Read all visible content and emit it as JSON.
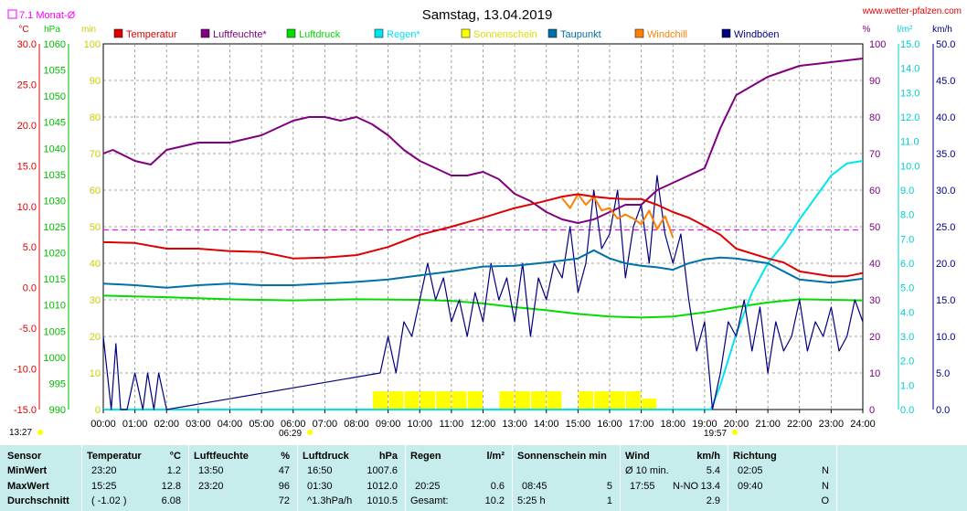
{
  "header": {
    "title": "Samstag, 13.04.2019",
    "site": "www.wetter-pfalzen.com",
    "monthly_avg_label": "7.1 Monat-Ø",
    "sunrise_left": "13:27",
    "sunrise": "06:29",
    "sunset": "19:57"
  },
  "units": {
    "temp": "°C",
    "press": "hPa",
    "sun": "min",
    "hum": "%",
    "rain": "l/m²",
    "wind": "km/h"
  },
  "colors": {
    "temperature": "#dd0000",
    "humidity": "#800080",
    "pressure": "#00dd00",
    "rain": "#00e5ee",
    "sunshine": "#ffff00",
    "dewpoint": "#0070a8",
    "windchill": "#ff8000",
    "gusts": "#000080",
    "monthly_avg": "#ff00ff",
    "summary_bg": "#c6ecec"
  },
  "legend": [
    {
      "label": "Temperatur",
      "color": "#dd0000"
    },
    {
      "label": "Luftfeuchte*",
      "color": "#800080"
    },
    {
      "label": "Luftdruck",
      "color": "#00dd00"
    },
    {
      "label": "Regen*",
      "color": "#00e5ee"
    },
    {
      "label": "Sonnenschein",
      "color": "#ffff00"
    },
    {
      "label": "Taupunkt",
      "color": "#0070a8"
    },
    {
      "label": "Windchill",
      "color": "#ff8000"
    },
    {
      "label": "Windböen",
      "color": "#000080"
    }
  ],
  "chart_data": {
    "type": "line",
    "title": "Samstag, 13.04.2019",
    "x_ticks": [
      "00:00",
      "01:00",
      "02:00",
      "03:00",
      "04:00",
      "05:00",
      "06:00",
      "07:00",
      "08:00",
      "09:00",
      "10:00",
      "11:00",
      "12:00",
      "13:00",
      "14:00",
      "15:00",
      "16:00",
      "17:00",
      "18:00",
      "19:00",
      "20:00",
      "21:00",
      "22:00",
      "23:00",
      "24:00"
    ],
    "axes": {
      "temp": {
        "label": "°C",
        "range": [
          -15,
          30
        ],
        "ticks": [
          "30.0",
          "25.0",
          "20.0",
          "15.0",
          "10.0",
          "5.0",
          "0.0",
          "-5.0",
          "-10.0",
          "-15.0"
        ]
      },
      "press": {
        "label": "hPa",
        "range": [
          990,
          1060
        ],
        "ticks": [
          "1060",
          "1055",
          "1050",
          "1045",
          "1040",
          "1035",
          "1030",
          "1025",
          "1020",
          "1015",
          "1010",
          "1005",
          "1000",
          "995",
          "990"
        ]
      },
      "sun": {
        "label": "min",
        "range": [
          0,
          100
        ],
        "ticks": [
          "100",
          "90",
          "80",
          "70",
          "60",
          "50",
          "40",
          "30",
          "20",
          "10",
          "0"
        ]
      },
      "hum": {
        "label": "%",
        "range": [
          0,
          100
        ],
        "ticks": [
          "100",
          "90",
          "80",
          "70",
          "60",
          "50",
          "40",
          "30",
          "20",
          "10",
          "0"
        ]
      },
      "rain": {
        "label": "l/m²",
        "range": [
          0,
          15
        ],
        "ticks": [
          "15.0",
          "14.0",
          "13.0",
          "12.0",
          "11.0",
          "10.0",
          "9.0",
          "8.0",
          "7.0",
          "6.0",
          "5.0",
          "4.0",
          "3.0",
          "2.0",
          "1.0",
          "0.0"
        ]
      },
      "wind": {
        "label": "km/h",
        "range": [
          0,
          50
        ],
        "ticks": [
          "50.0",
          "45.0",
          "40.0",
          "35.0",
          "30.0",
          "25.0",
          "20.0",
          "15.0",
          "10.0",
          "5.0",
          "0.0"
        ]
      }
    },
    "monthly_avg_temp": 7.1,
    "series": [
      {
        "name": "Temperatur",
        "axis": "temp",
        "color": "#dd0000",
        "x": [
          0,
          1,
          2,
          3,
          4,
          5,
          6,
          7,
          8,
          8.5,
          9,
          10,
          11,
          12,
          13,
          13.8,
          14.5,
          15,
          15.5,
          16,
          16.5,
          17,
          17.5,
          18,
          18.5,
          19,
          19.5,
          20,
          21,
          21.5,
          22,
          23,
          23.5,
          24
        ],
        "y": [
          5.6,
          5.5,
          4.8,
          4.8,
          4.5,
          4.4,
          3.6,
          3.7,
          4.0,
          4.5,
          5.0,
          6.5,
          7.5,
          8.6,
          9.8,
          10.5,
          11.2,
          11.5,
          11.2,
          11.0,
          10.9,
          10.9,
          10.2,
          9.3,
          8.6,
          7.6,
          6.5,
          4.8,
          3.6,
          3.1,
          2.0,
          1.4,
          1.4,
          1.8
        ]
      },
      {
        "name": "Luftfeuchte*",
        "axis": "hum",
        "color": "#800080",
        "x": [
          0,
          0.3,
          1,
          1.5,
          2,
          3,
          4,
          5,
          5.5,
          6,
          6.5,
          7,
          7.5,
          8,
          8.5,
          9,
          9.5,
          10,
          11,
          11.5,
          12,
          12.5,
          13,
          13.5,
          14,
          14.5,
          15,
          15.5,
          16,
          16.5,
          17,
          17.5,
          18,
          18.5,
          19,
          19.5,
          20,
          21,
          22,
          23,
          24
        ],
        "y": [
          70,
          71,
          68,
          67,
          71,
          73,
          73,
          75,
          77,
          79,
          80,
          80,
          79,
          80,
          78,
          75,
          71,
          68,
          64,
          64,
          65,
          63,
          59,
          57,
          54,
          52,
          51,
          52,
          54,
          56,
          56,
          60,
          62,
          64,
          66,
          77,
          86,
          91,
          94,
          95,
          96
        ]
      },
      {
        "name": "Luftdruck",
        "axis": "press",
        "color": "#00dd00",
        "x": [
          0,
          2,
          4,
          6,
          8,
          10,
          11,
          12,
          13,
          14,
          15,
          16,
          17,
          18,
          19,
          20,
          21,
          22,
          23,
          24
        ],
        "y": [
          1011.8,
          1011.5,
          1011.1,
          1010.9,
          1011.1,
          1011.0,
          1010.8,
          1010.3,
          1009.6,
          1009.0,
          1008.3,
          1007.8,
          1007.6,
          1007.8,
          1008.6,
          1009.6,
          1010.5,
          1011.1,
          1011.0,
          1010.9
        ]
      },
      {
        "name": "Regen*",
        "axis": "rain",
        "color": "#00e5ee",
        "x": [
          0,
          19.2,
          19.5,
          20,
          20.5,
          21,
          21.5,
          22,
          22.5,
          23,
          23.5,
          24
        ],
        "y": [
          0,
          0,
          1.0,
          3.1,
          4.8,
          6.0,
          6.8,
          7.8,
          8.7,
          9.6,
          10.1,
          10.2
        ]
      },
      {
        "name": "Sonnenschein",
        "axis": "sun",
        "color": "#ffff00",
        "x": [
          8.75,
          9.25,
          9.75,
          10.25,
          10.75,
          11.25,
          11.75,
          12.25,
          12.75,
          13.25,
          13.75,
          14.25,
          14.75,
          15.25,
          15.75,
          16.25,
          16.75,
          17.25
        ],
        "y": [
          5,
          5,
          5,
          5,
          5,
          5,
          5,
          0,
          5,
          5,
          5,
          5,
          0,
          5,
          5,
          5,
          5,
          3
        ]
      },
      {
        "name": "Taupunkt",
        "axis": "temp",
        "color": "#0070a8",
        "x": [
          0,
          1,
          2,
          3,
          4,
          5,
          6,
          7,
          8,
          9,
          10,
          11,
          12,
          13,
          14,
          15,
          15.5,
          16,
          16.5,
          17,
          17.5,
          18,
          18.5,
          19,
          19.5,
          20,
          21,
          22,
          23,
          24
        ],
        "y": [
          0.5,
          0.3,
          0.0,
          0.3,
          0.5,
          0.3,
          0.3,
          0.5,
          0.7,
          1.0,
          1.5,
          2.0,
          2.6,
          2.7,
          3.1,
          3.6,
          4.6,
          3.6,
          3.0,
          2.7,
          2.5,
          2.2,
          3.0,
          3.5,
          3.7,
          3.6,
          3.0,
          1.0,
          0.6,
          1.1
        ]
      },
      {
        "name": "Windchill",
        "axis": "temp",
        "color": "#ff8000",
        "x": [
          14.5,
          14.75,
          15,
          15.25,
          15.5,
          15.75,
          16,
          16.25,
          16.5,
          16.75,
          17,
          17.25,
          17.5,
          17.75,
          18
        ],
        "y": [
          11.0,
          9.8,
          11.5,
          10.2,
          11.2,
          9.5,
          9.8,
          8.5,
          9.0,
          8.5,
          7.8,
          9.5,
          7.2,
          8.8,
          6.2
        ]
      },
      {
        "name": "Windböen",
        "axis": "wind",
        "color": "#000080",
        "x": [
          0,
          0.25,
          0.4,
          0.55,
          0.75,
          1.0,
          1.25,
          1.4,
          1.6,
          1.75,
          2.0,
          8.75,
          9.0,
          9.25,
          9.5,
          9.75,
          10.0,
          10.25,
          10.5,
          10.75,
          11.0,
          11.25,
          11.5,
          11.75,
          12.0,
          12.25,
          12.5,
          12.75,
          13.0,
          13.25,
          13.5,
          13.75,
          14.0,
          14.25,
          14.5,
          14.75,
          15.0,
          15.25,
          15.5,
          15.75,
          16.0,
          16.25,
          16.5,
          16.75,
          17.0,
          17.25,
          17.5,
          17.75,
          18.0,
          18.25,
          18.5,
          18.75,
          19.0,
          19.25,
          19.5,
          19.75,
          20.0,
          20.25,
          20.5,
          20.75,
          21.0,
          21.25,
          21.5,
          21.75,
          22.0,
          22.25,
          22.5,
          22.75,
          23.0,
          23.25,
          23.5,
          23.75,
          24.0
        ],
        "y": [
          10,
          0,
          9,
          0,
          0,
          5,
          0,
          5,
          0,
          5,
          0,
          5,
          10,
          5,
          12,
          10,
          15,
          20,
          15,
          18,
          12,
          15,
          10,
          16,
          12,
          20,
          15,
          18,
          12,
          20,
          10,
          18,
          15,
          20,
          18,
          25,
          16,
          20,
          30,
          22,
          24,
          30,
          18,
          25,
          28,
          20,
          32,
          24,
          20,
          24,
          15,
          8,
          12,
          0,
          5,
          12,
          10,
          15,
          8,
          14,
          5,
          12,
          8,
          10,
          15,
          8,
          12,
          10,
          14,
          8,
          10,
          15,
          12
        ]
      }
    ]
  },
  "summary": {
    "sensor": {
      "header": "Sensor",
      "rows": [
        "MinWert",
        "MaxWert",
        "Durchschnitt"
      ]
    },
    "temperature": {
      "header": "Temperatur",
      "unit": "°C",
      "rows": [
        [
          "23:20",
          "1.2"
        ],
        [
          "15:25",
          "12.8"
        ],
        [
          "( -1.02 )",
          "6.08"
        ]
      ]
    },
    "humidity": {
      "header": "Luftfeuchte",
      "unit": "%",
      "rows": [
        [
          "13:50",
          "47"
        ],
        [
          "23:20",
          "96"
        ],
        [
          "",
          "72"
        ]
      ]
    },
    "pressure": {
      "header": "Luftdruck",
      "unit": "hPa",
      "rows": [
        [
          "16:50",
          "1007.6"
        ],
        [
          "01:30",
          "1012.0"
        ],
        [
          "^1.3hPa/h",
          "1010.5"
        ]
      ]
    },
    "rain": {
      "header": "Regen",
      "unit": "l/m²",
      "rows": [
        [
          "",
          ""
        ],
        [
          "20:25",
          "0.6"
        ],
        [
          "Gesamt:",
          "10.2"
        ]
      ]
    },
    "sunshine": {
      "header": "Sonnenschein min",
      "rows": [
        [
          "",
          ""
        ],
        [
          "08:45",
          "5"
        ],
        [
          "5:25 h",
          "1"
        ]
      ]
    },
    "wind": {
      "header": "Wind",
      "unit": "km/h",
      "rows": [
        [
          "Ø 10 min.",
          "",
          "5.4"
        ],
        [
          "17:55",
          "N-NO",
          "13.4"
        ],
        [
          "",
          "",
          "2.9"
        ]
      ]
    },
    "direction": {
      "header": "Richtung",
      "rows": [
        [
          "02:05",
          "N"
        ],
        [
          "09:40",
          "N"
        ],
        [
          "",
          "O"
        ]
      ]
    }
  }
}
